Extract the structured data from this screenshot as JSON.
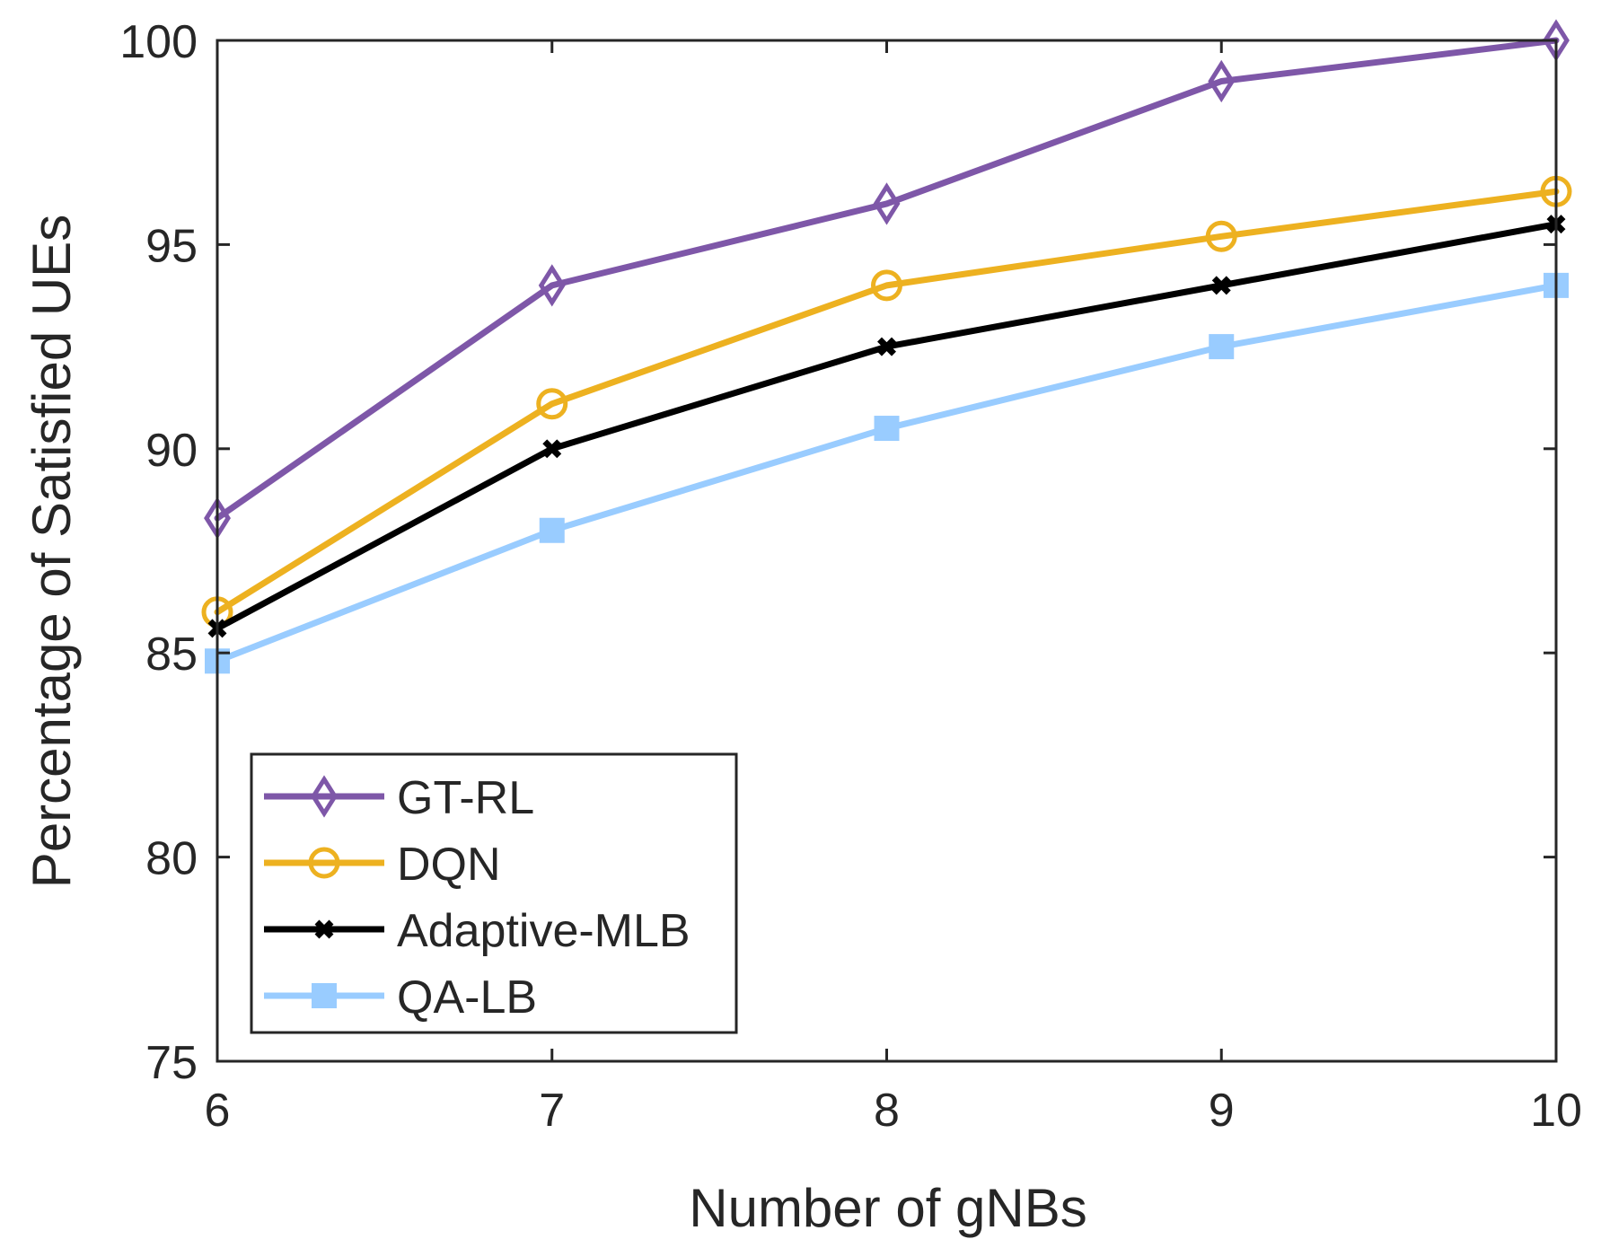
{
  "chart_data": {
    "type": "line",
    "title": "",
    "xlabel": "Number of gNBs",
    "ylabel": "Percentage of Satisfied UEs",
    "x": [
      6,
      7,
      8,
      9,
      10
    ],
    "xlim": [
      6,
      10
    ],
    "ylim": [
      75,
      100
    ],
    "xticks": [
      "6",
      "7",
      "8",
      "9",
      "10"
    ],
    "yticks": [
      "75",
      "80",
      "85",
      "90",
      "95",
      "100"
    ],
    "grid": false,
    "legend_position": "bottom-left",
    "series": [
      {
        "name": "GT-RL",
        "marker": "diamond",
        "color": "#7E57A8",
        "values": [
          88.3,
          94.0,
          96.0,
          99.0,
          100.0
        ]
      },
      {
        "name": "DQN",
        "marker": "circle",
        "color": "#EDB120",
        "values": [
          86.0,
          91.1,
          94.0,
          95.2,
          96.3
        ]
      },
      {
        "name": "Adaptive-MLB",
        "marker": "x",
        "color": "#000000",
        "values": [
          85.6,
          90.0,
          92.5,
          94.0,
          95.5
        ]
      },
      {
        "name": "QA-LB",
        "marker": "square",
        "color": "#99CCFF",
        "values": [
          84.8,
          88.0,
          90.5,
          92.5,
          94.0
        ]
      }
    ]
  }
}
